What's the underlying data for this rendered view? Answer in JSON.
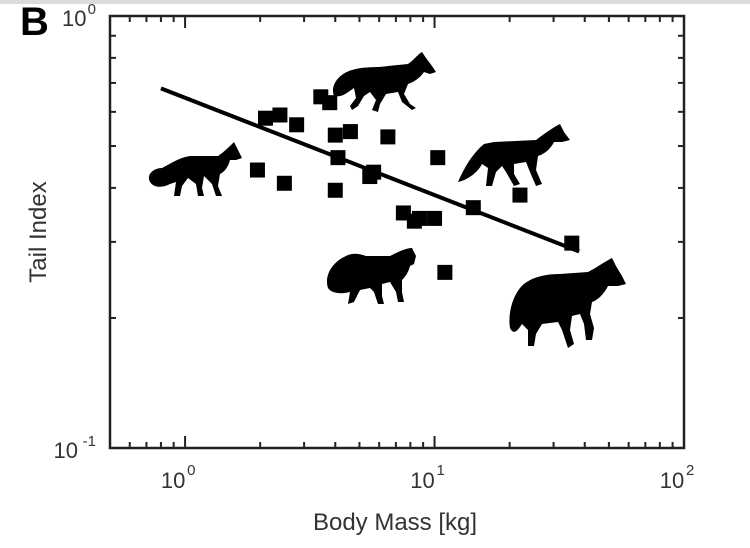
{
  "panel_label": "B",
  "chart_data": {
    "type": "scatter",
    "xlabel": "Body Mass [kg]",
    "ylabel": "Tail Index",
    "x_scale": "log",
    "y_scale": "log",
    "xlim": [
      0.5,
      100
    ],
    "ylim": [
      0.1,
      1
    ],
    "x_ticks": [
      {
        "value": 1,
        "base": "10",
        "exp": "0"
      },
      {
        "value": 10,
        "base": "10",
        "exp": "1"
      },
      {
        "value": 100,
        "base": "10",
        "exp": "2"
      }
    ],
    "y_ticks": [
      {
        "value": 0.1,
        "base": "10",
        "exp": "-1"
      },
      {
        "value": 1,
        "base": "10",
        "exp": "0"
      }
    ],
    "color": "#000000",
    "points": [
      {
        "x": 1.95,
        "y": 0.44
      },
      {
        "x": 2.1,
        "y": 0.58
      },
      {
        "x": 2.4,
        "y": 0.59
      },
      {
        "x": 2.5,
        "y": 0.41
      },
      {
        "x": 2.8,
        "y": 0.56
      },
      {
        "x": 3.5,
        "y": 0.65
      },
      {
        "x": 3.8,
        "y": 0.63
      },
      {
        "x": 4.0,
        "y": 0.53
      },
      {
        "x": 4.1,
        "y": 0.47
      },
      {
        "x": 4.0,
        "y": 0.395
      },
      {
        "x": 4.6,
        "y": 0.54
      },
      {
        "x": 5.5,
        "y": 0.425
      },
      {
        "x": 5.7,
        "y": 0.435
      },
      {
        "x": 6.5,
        "y": 0.525
      },
      {
        "x": 7.5,
        "y": 0.35
      },
      {
        "x": 8.3,
        "y": 0.335
      },
      {
        "x": 8.7,
        "y": 0.34
      },
      {
        "x": 10.0,
        "y": 0.34
      },
      {
        "x": 10.3,
        "y": 0.47
      },
      {
        "x": 11.0,
        "y": 0.255
      },
      {
        "x": 14.3,
        "y": 0.36
      },
      {
        "x": 22.0,
        "y": 0.385
      },
      {
        "x": 35.5,
        "y": 0.298
      }
    ],
    "fit_line": {
      "x": [
        0.8,
        38
      ],
      "y": [
        0.68,
        0.285
      ]
    },
    "silhouettes": [
      "fox-icon",
      "fox-icon",
      "fox-icon",
      "fox-icon",
      "wolf-icon"
    ]
  }
}
